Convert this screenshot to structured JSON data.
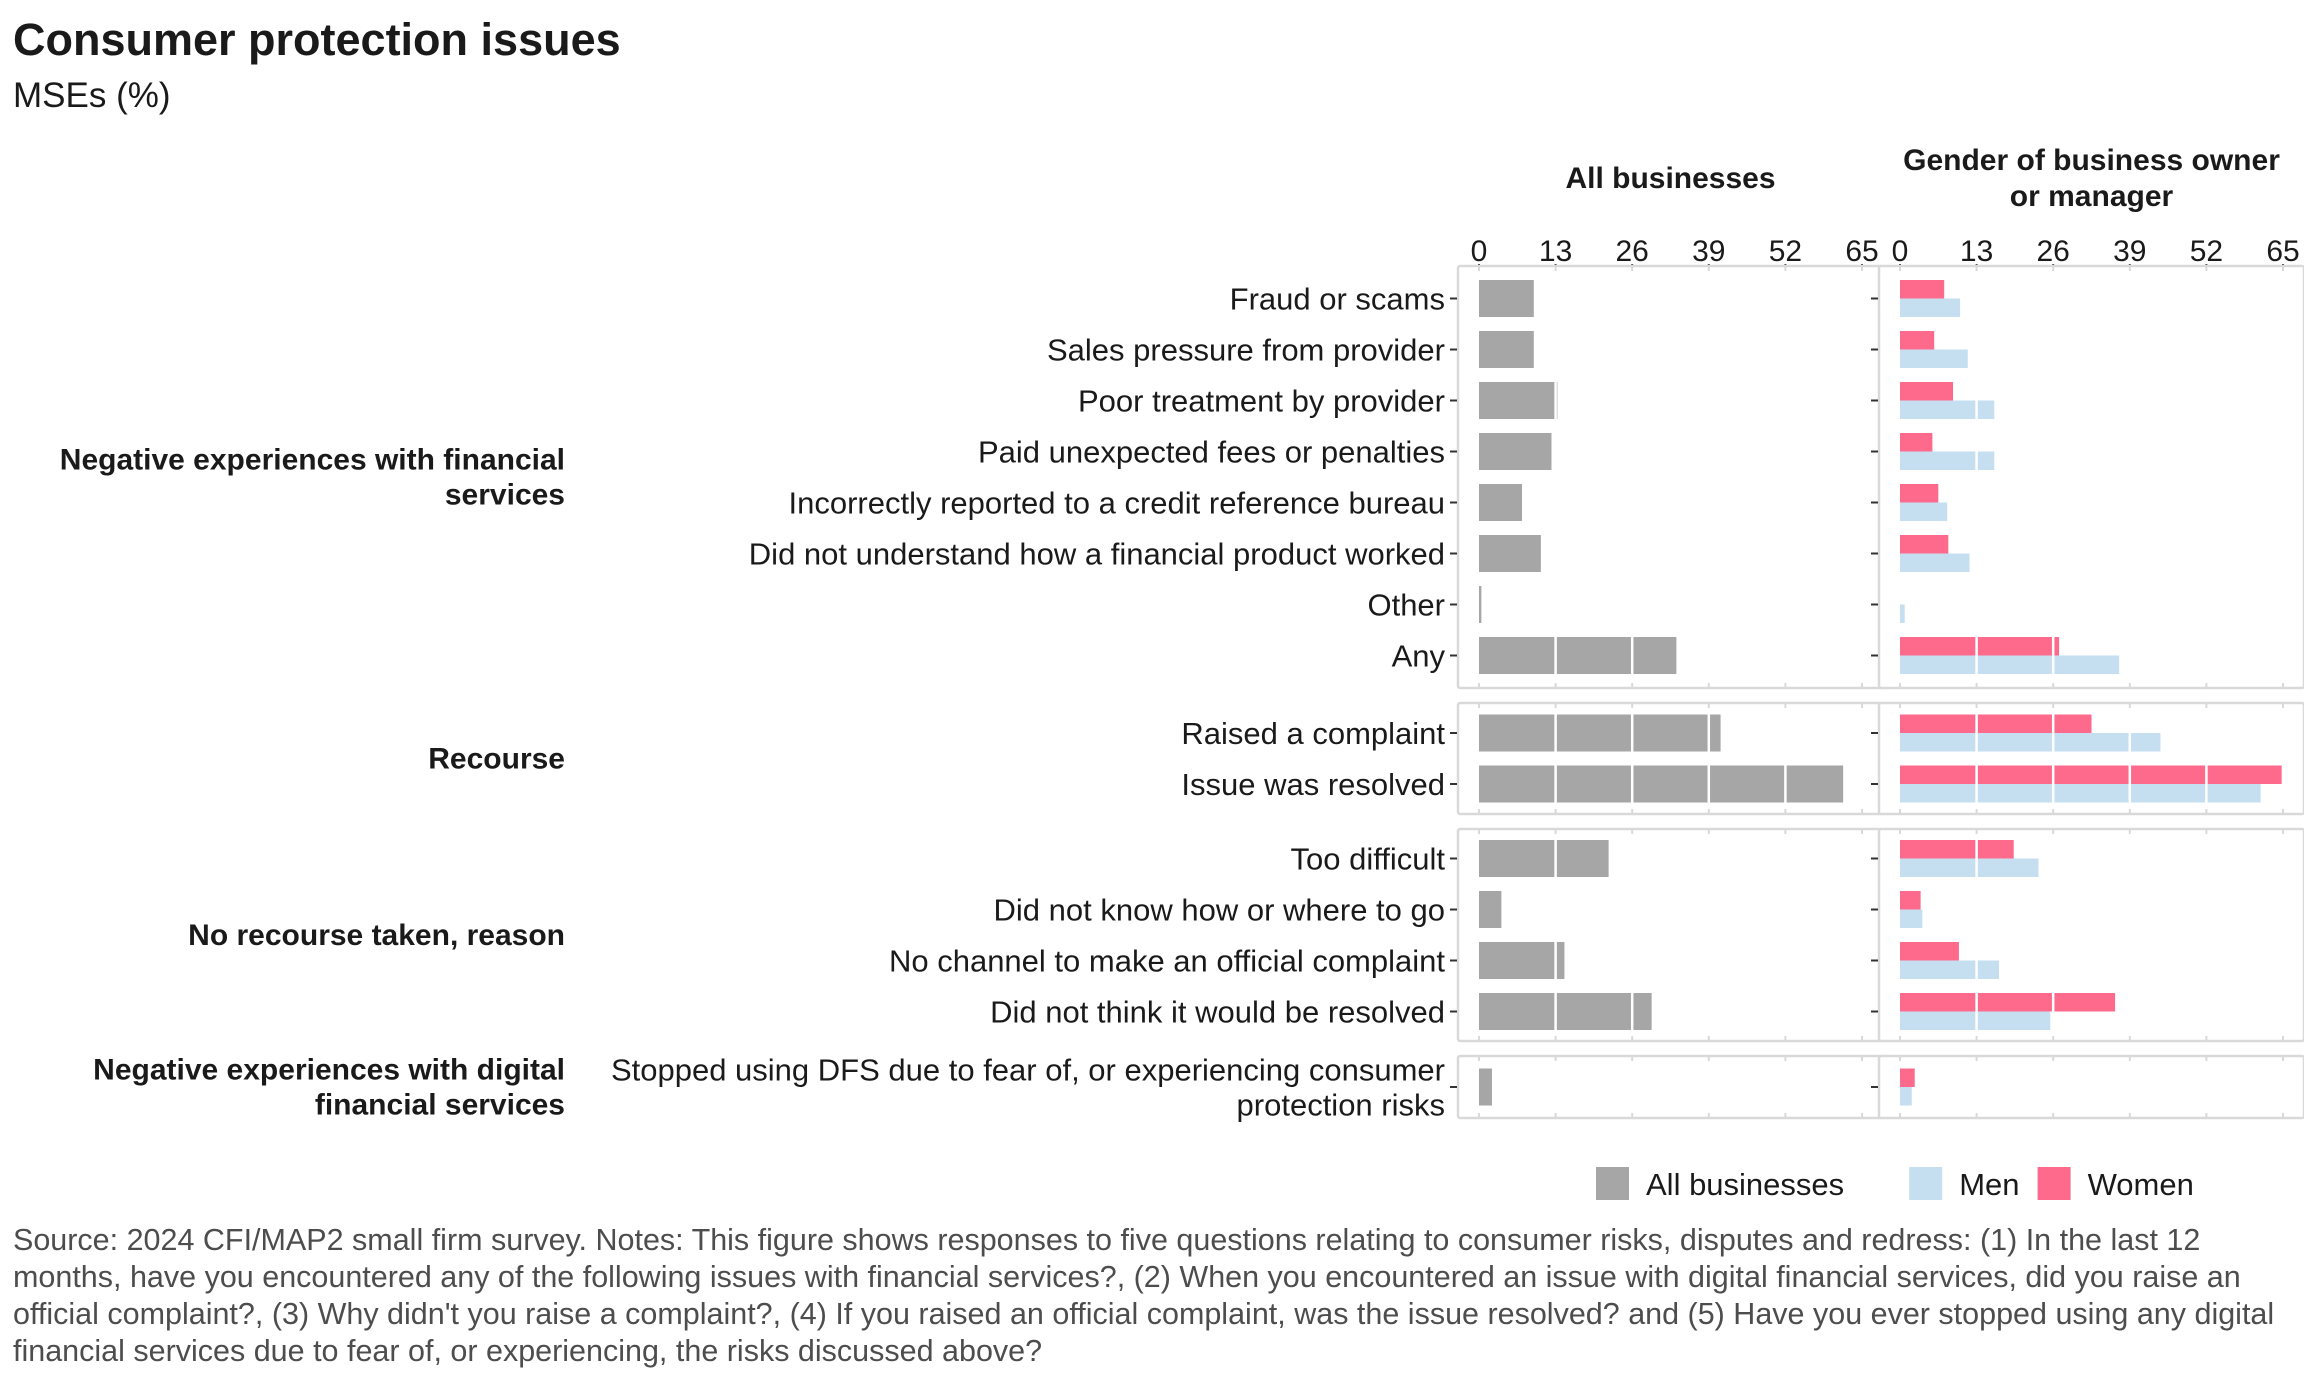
{
  "chart_data": {
    "type": "bar",
    "orientation": "horizontal",
    "title": "Consumer protection issues",
    "subtitle": "MSEs (%)",
    "x_ticks": [
      0,
      13,
      26,
      39,
      52,
      65
    ],
    "xlim": [
      0,
      66
    ],
    "panels": [
      "All businesses",
      "Gender of business owner or manager"
    ],
    "groups": [
      {
        "name": "Negative experiences with financial services",
        "items": [
          {
            "label": "Fraud or scams",
            "all": 9.3,
            "women": 7.5,
            "men": 10.2
          },
          {
            "label": "Sales pressure from provider",
            "all": 9.3,
            "women": 5.8,
            "men": 11.5
          },
          {
            "label": "Poor treatment by provider",
            "all": 13.3,
            "women": 9.0,
            "men": 16.0
          },
          {
            "label": "Paid unexpected fees or penalties",
            "all": 12.3,
            "women": 5.5,
            "men": 16.0
          },
          {
            "label": "Incorrectly reported to a credit reference bureau",
            "all": 7.3,
            "women": 6.5,
            "men": 8.0
          },
          {
            "label": "Did not understand how a financial product worked",
            "all": 10.5,
            "women": 8.2,
            "men": 11.8
          },
          {
            "label": "Other",
            "all": 0.4,
            "women": 0,
            "men": 0.8
          },
          {
            "label": "Any",
            "all": 33.5,
            "women": 27.0,
            "men": 37.2
          }
        ]
      },
      {
        "name": "Recourse",
        "items": [
          {
            "label": "Raised a complaint",
            "all": 41.0,
            "women": 32.5,
            "men": 44.2
          },
          {
            "label": "Issue was resolved",
            "all": 61.8,
            "women": 64.8,
            "men": 61.2
          }
        ]
      },
      {
        "name": "No recourse taken, reason",
        "items": [
          {
            "label": "Too difficult",
            "all": 22.0,
            "women": 19.3,
            "men": 23.5
          },
          {
            "label": "Did not know how or where to go",
            "all": 3.8,
            "women": 3.5,
            "men": 3.8
          },
          {
            "label": "No channel to make an official complaint",
            "all": 14.5,
            "women": 10.0,
            "men": 16.8
          },
          {
            "label": "Did not think it would be resolved",
            "all": 29.3,
            "women": 36.5,
            "men": 25.5
          }
        ]
      },
      {
        "name": "Negative experiences with digital financial services",
        "items": [
          {
            "label": "Stopped using DFS due to fear of, or experiencing consumer protection risks",
            "all": 2.2,
            "women": 2.5,
            "men": 2.0
          }
        ]
      }
    ],
    "legend": {
      "position": "bottom-right",
      "entries": [
        {
          "name": "All businesses",
          "color": "#a6a6a6"
        },
        {
          "name": "Men",
          "color": "#c6dff0"
        },
        {
          "name": "Women",
          "color": "#fe6a8c"
        }
      ]
    },
    "colors": {
      "all": "#a6a6a6",
      "men": "#c6dff0",
      "women": "#fe6a8c",
      "panel_border": "#d9d9d9"
    },
    "grid": true
  },
  "footnote": "Source: 2024 CFI/MAP2 small firm survey. Notes: This figure shows responses to five questions relating to consumer risks, disputes and redress: (1) In the last 12 months, have you encountered any of the following issues with financial services?, (2) When you encountered an issue with digital financial services, did you raise an official complaint?, (3) Why didn't you raise a complaint?, (4) If you raised an official complaint, was the issue resolved? and (5) Have you ever stopped using any digital financial services due to fear of, or experiencing, the risks discussed above?"
}
